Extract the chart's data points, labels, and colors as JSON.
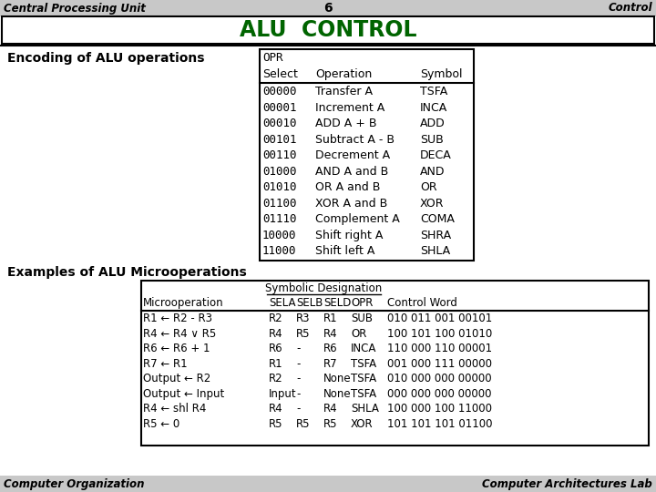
{
  "header_left": "Central Processing Unit",
  "header_center": "6",
  "header_right": "Control",
  "title": "ALU  CONTROL",
  "title_color": "#006400",
  "section1_label": "Encoding of ALU operations",
  "opr_table_header1": "OPR",
  "opr_table_header2": [
    "Select",
    "Operation",
    "Symbol"
  ],
  "opr_table_rows": [
    [
      "00000",
      "Transfer A",
      "TSFA"
    ],
    [
      "00001",
      "Increment A",
      "INCA"
    ],
    [
      "00010",
      "ADD A + B",
      "ADD"
    ],
    [
      "00101",
      "Subtract A - B",
      "SUB"
    ],
    [
      "00110",
      "Decrement A",
      "DECA"
    ],
    [
      "01000",
      "AND A and B",
      "AND"
    ],
    [
      "01010",
      "OR A and B",
      "OR"
    ],
    [
      "01100",
      "XOR A and B",
      "XOR"
    ],
    [
      "01110",
      "Complement A",
      "COMA"
    ],
    [
      "10000",
      "Shift right A",
      "SHRA"
    ],
    [
      "11000",
      "Shift left A",
      "SHLA"
    ]
  ],
  "section2_label": "Examples of ALU Microoperations",
  "micro_table_span_header": "Symbolic Designation",
  "micro_table_col_headers": [
    "Microoperation",
    "SELA",
    "SELB",
    "SELD",
    "OPR",
    "Control Word"
  ],
  "micro_table_rows": [
    [
      "R1 ← R2 - R3",
      "R2",
      "R3",
      "R1",
      "SUB",
      "010 011 001 00101"
    ],
    [
      "R4 ← R4 ∨ R5",
      "R4",
      "R5",
      "R4",
      "OR",
      "100 101 100 01010"
    ],
    [
      "R6 ← R6 + 1",
      "R6",
      "-",
      "R6",
      "INCA",
      "110 000 110 00001"
    ],
    [
      "R7 ← R1",
      "R1",
      "-",
      "R7",
      "TSFA",
      "001 000 111 00000"
    ],
    [
      "Output ← R2",
      "R2",
      "-",
      "None",
      "TSFA",
      "010 000 000 00000"
    ],
    [
      "Output ← Input",
      "Input",
      "-",
      "None",
      "TSFA",
      "000 000 000 00000"
    ],
    [
      "R4 ← shl R4",
      "R4",
      "-",
      "R4",
      "SHLA",
      "100 000 100 11000"
    ],
    [
      "R5 ← 0",
      "R5",
      "R5",
      "R5",
      "XOR",
      "101 101 101 01100"
    ]
  ],
  "footer_left": "Computer Organization",
  "footer_right": "Computer Architectures Lab",
  "bg_color": "#ffffff",
  "header_bg": "#c8c8c8",
  "footer_bg": "#c8c8c8"
}
